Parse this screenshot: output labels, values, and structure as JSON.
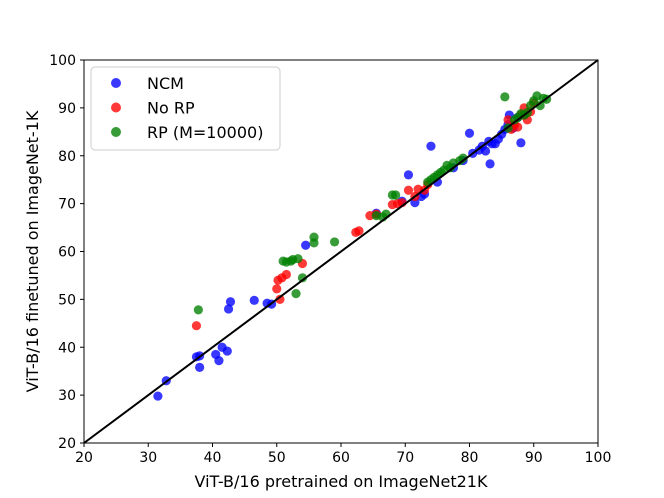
{
  "chart_data": {
    "type": "scatter",
    "xlabel": "ViT-B/16 pretrained on ImageNet21K",
    "ylabel": "ViT-B/16 finetuned on ImageNet-1K",
    "xlim": [
      20,
      100
    ],
    "ylim": [
      20,
      100
    ],
    "xticks": [
      20,
      30,
      40,
      50,
      60,
      70,
      80,
      90,
      100
    ],
    "yticks": [
      20,
      30,
      40,
      50,
      60,
      70,
      80,
      90,
      100
    ],
    "grid": false,
    "legend_position": "top-left",
    "reference_line": {
      "style": "y = x",
      "color": "#000000"
    },
    "series": [
      {
        "name": "NCM",
        "color": "#0000ff",
        "points": [
          [
            31.5,
            29.8
          ],
          [
            32.8,
            33.0
          ],
          [
            37.5,
            38.0
          ],
          [
            38.0,
            35.8
          ],
          [
            38.0,
            38.2
          ],
          [
            40.5,
            38.5
          ],
          [
            41.0,
            37.2
          ],
          [
            41.5,
            40.0
          ],
          [
            42.3,
            39.2
          ],
          [
            42.5,
            48.0
          ],
          [
            42.8,
            49.5
          ],
          [
            46.5,
            49.8
          ],
          [
            48.5,
            49.2
          ],
          [
            49.2,
            49.0
          ],
          [
            54.5,
            61.3
          ],
          [
            65.5,
            68.0
          ],
          [
            69.5,
            70.5
          ],
          [
            70.5,
            76.0
          ],
          [
            71.5,
            70.2
          ],
          [
            72.5,
            71.5
          ],
          [
            73.0,
            72.0
          ],
          [
            74.0,
            82.0
          ],
          [
            75.0,
            74.5
          ],
          [
            77.5,
            77.5
          ],
          [
            79.0,
            79.0
          ],
          [
            80.0,
            84.7
          ],
          [
            80.5,
            80.5
          ],
          [
            81.5,
            81.2
          ],
          [
            82.0,
            82.0
          ],
          [
            82.5,
            81.0
          ],
          [
            83.0,
            83.0
          ],
          [
            83.2,
            78.3
          ],
          [
            83.5,
            82.5
          ],
          [
            84.0,
            82.5
          ],
          [
            84.5,
            83.5
          ],
          [
            85.0,
            84.5
          ],
          [
            85.5,
            85.5
          ],
          [
            86.0,
            86.5
          ],
          [
            86.2,
            88.5
          ],
          [
            86.8,
            85.8
          ],
          [
            87.5,
            88.0
          ],
          [
            88.0,
            82.7
          ],
          [
            88.5,
            88.5
          ]
        ]
      },
      {
        "name": "No RP",
        "color": "#ff0000",
        "points": [
          [
            37.5,
            44.5
          ],
          [
            50.0,
            52.2
          ],
          [
            50.2,
            54.0
          ],
          [
            50.5,
            50.0
          ],
          [
            50.8,
            54.5
          ],
          [
            51.5,
            55.2
          ],
          [
            54.0,
            57.5
          ],
          [
            62.3,
            64.0
          ],
          [
            62.8,
            64.3
          ],
          [
            64.5,
            67.5
          ],
          [
            65.5,
            67.8
          ],
          [
            68.0,
            69.8
          ],
          [
            68.8,
            70.0
          ],
          [
            69.5,
            70.2
          ],
          [
            70.5,
            72.8
          ],
          [
            71.5,
            71.5
          ],
          [
            72.0,
            73.0
          ],
          [
            73.0,
            72.8
          ],
          [
            73.5,
            74.0
          ],
          [
            86.0,
            87.5
          ],
          [
            86.5,
            85.5
          ],
          [
            87.0,
            86.5
          ],
          [
            87.5,
            86.0
          ],
          [
            88.0,
            88.5
          ],
          [
            88.5,
            90.0
          ],
          [
            89.0,
            87.5
          ],
          [
            89.5,
            89.2
          ],
          [
            90.0,
            91.0
          ]
        ]
      },
      {
        "name": "RP (M=10000)",
        "color": "#008000",
        "points": [
          [
            37.8,
            47.8
          ],
          [
            51.0,
            58.0
          ],
          [
            51.5,
            57.8
          ],
          [
            52.2,
            58.0
          ],
          [
            52.5,
            58.3
          ],
          [
            53.0,
            51.2
          ],
          [
            53.3,
            58.5
          ],
          [
            54.0,
            54.5
          ],
          [
            55.8,
            61.8
          ],
          [
            55.8,
            63.0
          ],
          [
            59.0,
            62.0
          ],
          [
            65.5,
            67.5
          ],
          [
            66.5,
            67.2
          ],
          [
            67.0,
            67.8
          ],
          [
            68.0,
            71.8
          ],
          [
            68.5,
            71.8
          ],
          [
            73.5,
            74.5
          ],
          [
            74.0,
            75.0
          ],
          [
            74.5,
            75.5
          ],
          [
            75.0,
            76.0
          ],
          [
            75.5,
            76.5
          ],
          [
            76.0,
            77.0
          ],
          [
            76.5,
            78.0
          ],
          [
            77.0,
            77.5
          ],
          [
            77.5,
            78.5
          ],
          [
            78.5,
            79.0
          ],
          [
            79.0,
            79.5
          ],
          [
            85.5,
            92.3
          ],
          [
            86.0,
            85.8
          ],
          [
            87.0,
            87.5
          ],
          [
            87.5,
            88.0
          ],
          [
            88.0,
            88.8
          ],
          [
            88.5,
            88.5
          ],
          [
            89.0,
            89.0
          ],
          [
            89.5,
            90.5
          ],
          [
            90.0,
            91.5
          ],
          [
            90.5,
            92.5
          ],
          [
            91.0,
            90.5
          ],
          [
            91.5,
            92.0
          ],
          [
            92.0,
            91.8
          ]
        ]
      }
    ]
  }
}
